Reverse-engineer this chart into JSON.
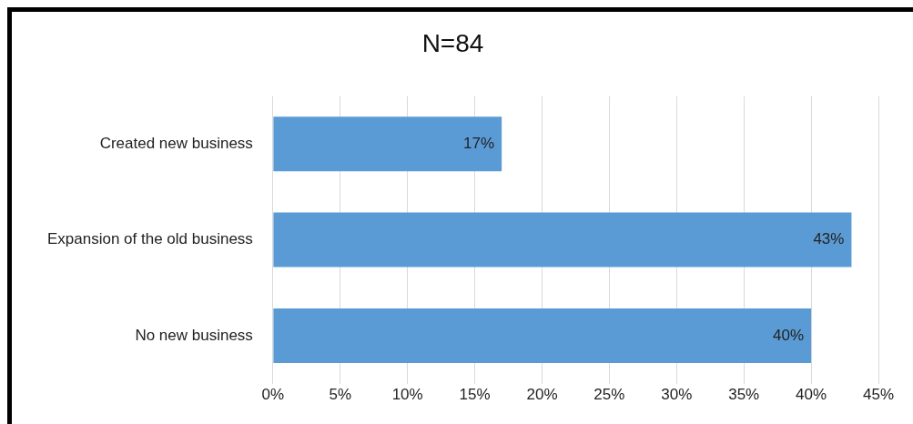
{
  "chart_data": {
    "type": "bar",
    "orientation": "horizontal",
    "title": "N=84",
    "categories": [
      "Created new business",
      "Expansion of the old business",
      "No new business"
    ],
    "values": [
      17,
      43,
      40
    ],
    "value_labels": [
      "17%",
      "43%",
      "40%"
    ],
    "color": "#5b9bd5",
    "xlim": [
      0,
      45
    ],
    "xticks": [
      {
        "value": 0,
        "label": "0%"
      },
      {
        "value": 5,
        "label": "5%"
      },
      {
        "value": 10,
        "label": "10%"
      },
      {
        "value": 15,
        "label": "15%"
      },
      {
        "value": 20,
        "label": "20%"
      },
      {
        "value": 25,
        "label": "25%"
      },
      {
        "value": 30,
        "label": "30%"
      },
      {
        "value": 35,
        "label": "35%"
      },
      {
        "value": 40,
        "label": "40%"
      },
      {
        "value": 45,
        "label": "45%"
      }
    ],
    "grid": "x",
    "legend": false
  }
}
